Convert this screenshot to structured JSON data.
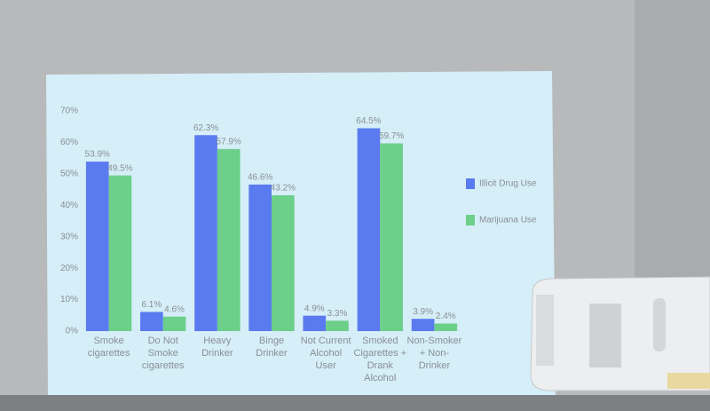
{
  "chart_data": {
    "type": "bar",
    "categories": [
      "Smoke cigarettes",
      "Do Not Smoke cigarettes",
      "Heavy Drinker",
      "Binge Drinker",
      "Not Current Alcohol User",
      "Smoked Cigarettes + Drank Alcohol",
      "Non-Smoker + Non-Drinker"
    ],
    "series": [
      {
        "name": "Illicit Drug Use",
        "color": "#5a7bef",
        "values": [
          53.9,
          6.1,
          62.3,
          46.6,
          4.9,
          64.5,
          3.9
        ],
        "value_labels": [
          "53.9%",
          "6.1%",
          "62.3%",
          "46.6%",
          "4.9%",
          "64.5%",
          "3.9%"
        ]
      },
      {
        "name": "Marijuana Use",
        "color": "#6ccf8a",
        "values": [
          49.5,
          4.6,
          57.9,
          43.2,
          3.3,
          59.7,
          2.4
        ],
        "value_labels": [
          "49.5%",
          "4.6%",
          "57.9%",
          "43.2%",
          "3.3%",
          "59.7%",
          "2.4%"
        ]
      }
    ],
    "ylim": [
      0,
      70
    ],
    "yticks": [
      {
        "value": 0,
        "label": "0%"
      },
      {
        "value": 10,
        "label": "10%"
      },
      {
        "value": 20,
        "label": "20%"
      },
      {
        "value": 30,
        "label": "30%"
      },
      {
        "value": 40,
        "label": "40%"
      },
      {
        "value": 50,
        "label": "50%"
      },
      {
        "value": 60,
        "label": "60%"
      },
      {
        "value": 70,
        "label": "70%"
      }
    ],
    "grid": false,
    "legend": "right"
  }
}
